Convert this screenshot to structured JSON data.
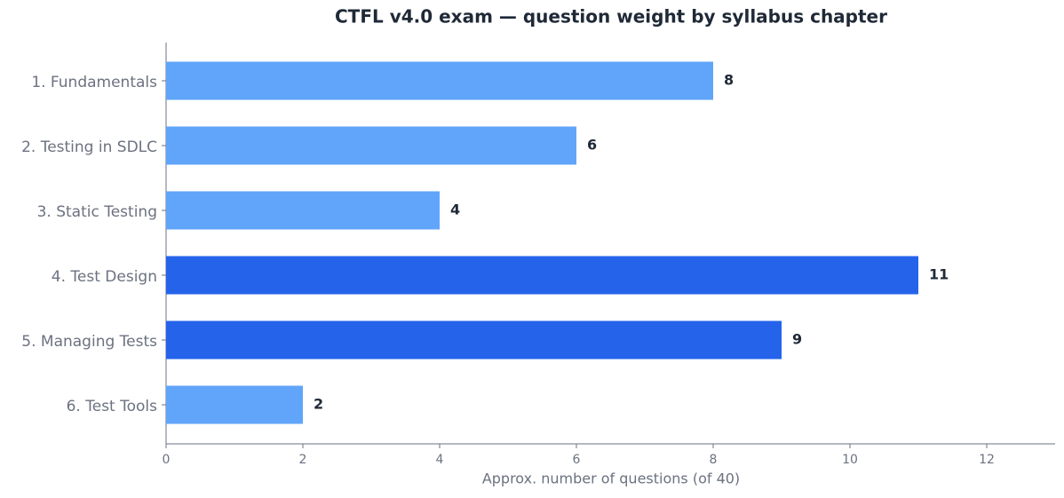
{
  "chart_data": {
    "type": "bar",
    "orientation": "horizontal",
    "title": "CTFL v4.0 exam — question weight by syllabus chapter",
    "x_label": "Approx. number of questions (of 40)",
    "categories": [
      "1. Fundamentals",
      "2. Testing in SDLC",
      "3. Static Testing",
      "4. Test Design",
      "5. Managing Tests",
      "6. Test Tools"
    ],
    "values": [
      8,
      6,
      4,
      11,
      9,
      2
    ],
    "colors": [
      "#60a5fa",
      "#60a5fa",
      "#60a5fa",
      "#2563eb",
      "#2563eb",
      "#60a5fa"
    ],
    "xlim": [
      0,
      13
    ],
    "xticks": [
      0,
      2,
      4,
      6,
      8,
      10,
      12
    ],
    "grid": false
  }
}
